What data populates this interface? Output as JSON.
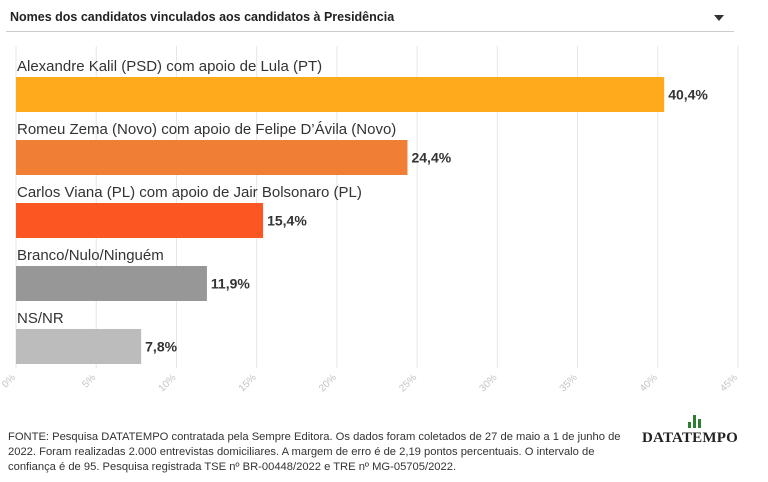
{
  "selector": {
    "label": "Nomes dos candidatos vinculados aos candidatos à Presidência",
    "icon": "chevron-down-icon"
  },
  "chart_data": {
    "type": "bar",
    "orientation": "horizontal",
    "categories": [
      "Alexandre Kalil (PSD) com apoio de Lula (PT)",
      "Romeu Zema (Novo) com apoio de Felipe D’Ávila (Novo)",
      "Carlos Viana (PL) com apoio de Jair Bolsonaro (PL)",
      "Branco/Nulo/Ninguém",
      "NS/NR"
    ],
    "values": [
      40.4,
      24.4,
      15.4,
      11.9,
      7.8
    ],
    "value_labels": [
      "40,4%",
      "24,4%",
      "15,4%",
      "11,9%",
      "7,8%"
    ],
    "colors": [
      "#ffaa1a",
      "#f07f35",
      "#fc5622",
      "#979797",
      "#bcbcbc"
    ],
    "xlim": [
      0,
      45
    ],
    "ticks": [
      0,
      5,
      10,
      15,
      20,
      25,
      30,
      35,
      40,
      45
    ],
    "tick_labels": [
      "0%",
      "5%",
      "10%",
      "15%",
      "20%",
      "25%",
      "30%",
      "35%",
      "40%",
      "45%"
    ],
    "grid": true,
    "title": "",
    "xlabel": "",
    "ylabel": ""
  },
  "footer": {
    "source": "FONTE: Pesquisa DATATEMPO contratada pela Sempre Editora. Os dados foram coletados de 27 de maio a 1 de junho de 2022. Foram realizadas 2.000 entrevistas domiciliares. A margem de erro é de 2,19 pontos percentuais. O intervalo de confiança é de 95. Pesquisa registrada TSE nº BR-00448/2022 e TRE nº MG-05705/2022."
  },
  "logo": {
    "text": "DATATEMPO",
    "color": "#2e7d32"
  }
}
